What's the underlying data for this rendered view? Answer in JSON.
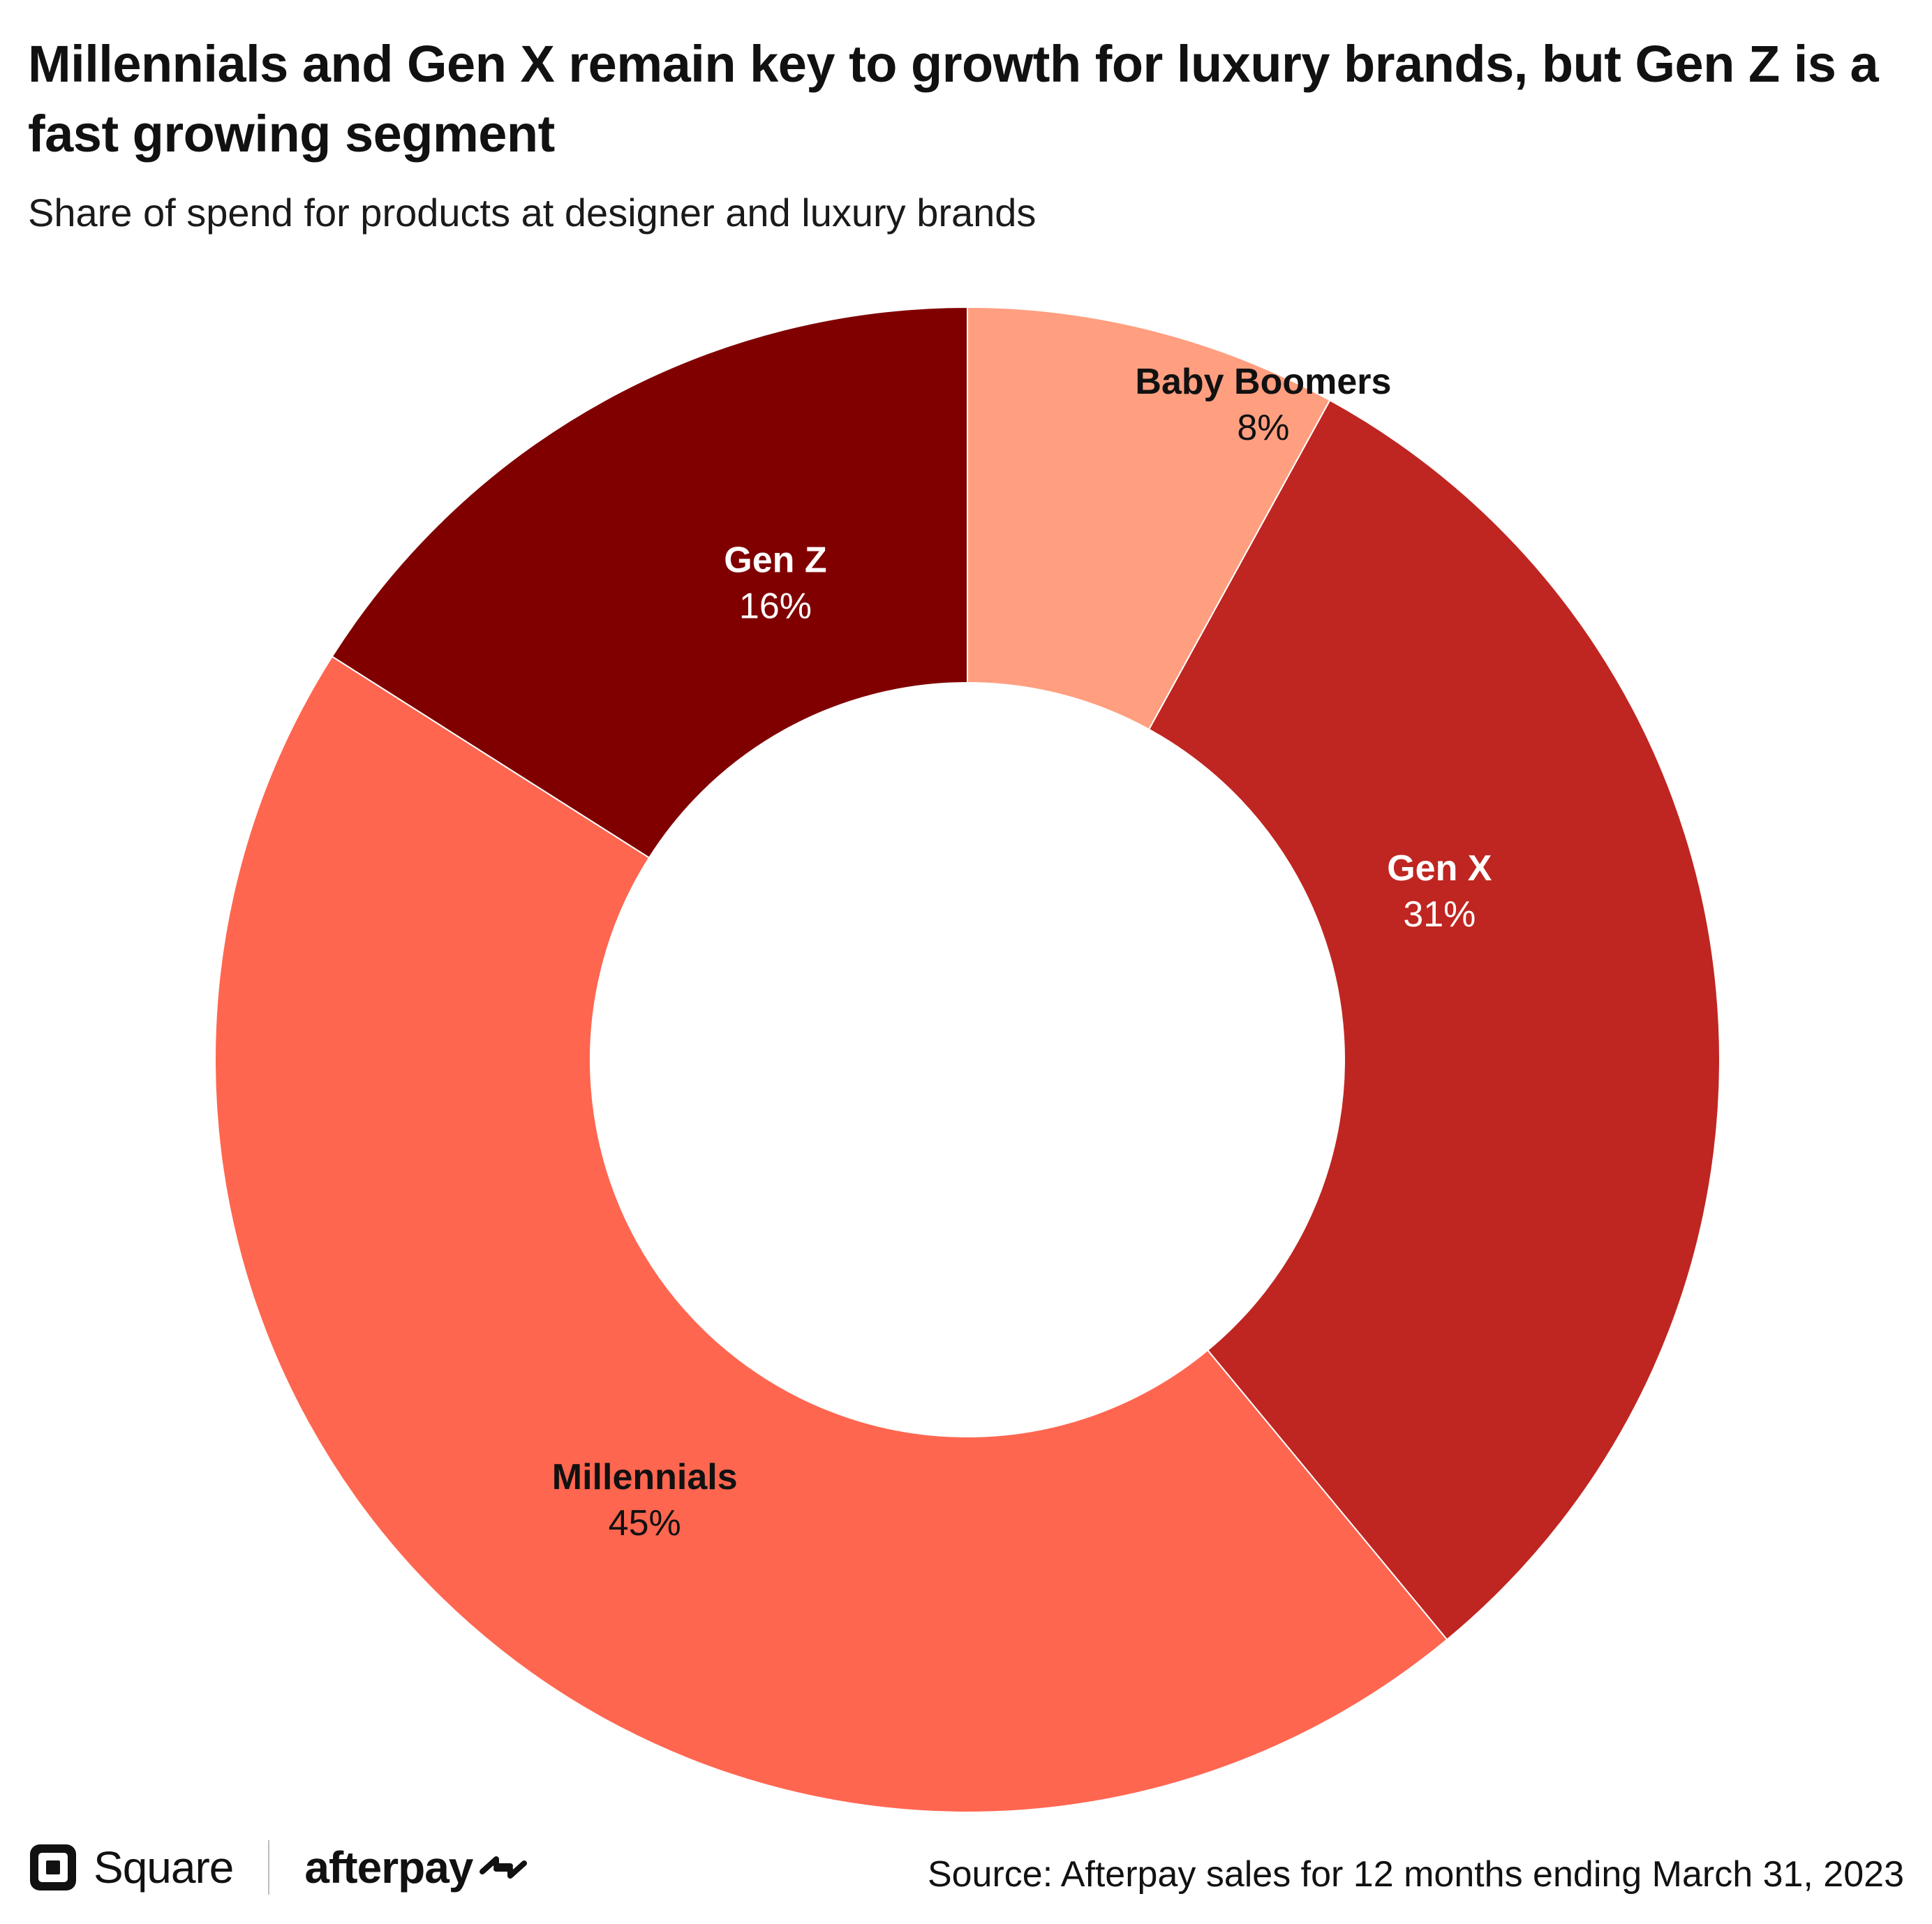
{
  "header": {
    "title": "Millennials and Gen X remain key to growth for luxury brands, but Gen Z is a fast growing segment",
    "subtitle": "Share of spend for products at designer and luxury brands"
  },
  "chart_data": {
    "type": "pie",
    "style": "donut",
    "title": "Millennials and Gen X remain key to growth for luxury brands, but Gen Z is a fast growing segment",
    "subtitle": "Share of spend for products at designer and luxury brands",
    "unit": "%",
    "start": "12 o'clock",
    "direction": "clockwise",
    "legend": "none (direct labels on slices)",
    "slices": [
      {
        "label": "Baby Boomers",
        "value": 8,
        "display": "8%",
        "color": "#FF9F80",
        "label_color": "#111111"
      },
      {
        "label": "Gen X",
        "value": 31,
        "display": "31%",
        "color": "#BF2621",
        "label_color": "#FFFFFF"
      },
      {
        "label": "Millennials",
        "value": 45,
        "display": "45%",
        "color": "#FF6650",
        "label_color": "#111111"
      },
      {
        "label": "Gen Z",
        "value": 16,
        "display": "16%",
        "color": "#800000",
        "label_color": "#FFFFFF"
      }
    ]
  },
  "footer": {
    "square_logo_text": "Square",
    "afterpay_logo_text": "afterpay",
    "source": "Source: Afterpay sales for 12 months ending March 31, 2023"
  },
  "icons": {
    "square_mark": "square-logo-icon",
    "afterpay_mark": "afterpay-arrows-icon"
  }
}
